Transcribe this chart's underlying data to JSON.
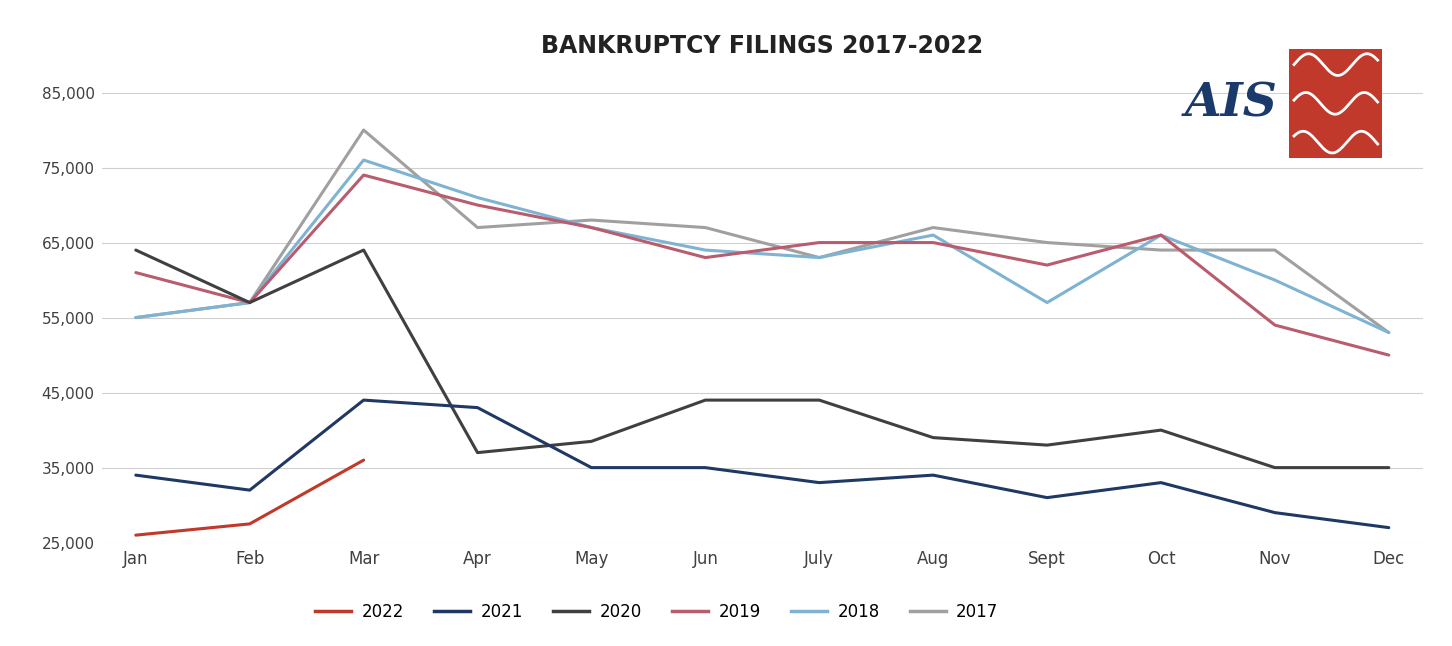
{
  "title": "BANKRUPTCY FILINGS 2017-2022",
  "months": [
    "Jan",
    "Feb",
    "Mar",
    "Apr",
    "May",
    "Jun",
    "July",
    "Aug",
    "Sept",
    "Oct",
    "Nov",
    "Dec"
  ],
  "series": {
    "2022": [
      26000,
      27500,
      36000,
      null,
      null,
      null,
      null,
      null,
      null,
      null,
      null,
      null
    ],
    "2021": [
      34000,
      32000,
      44000,
      43000,
      35000,
      35000,
      33000,
      34000,
      31000,
      33000,
      29000,
      27000
    ],
    "2020": [
      64000,
      57000,
      64000,
      37000,
      38500,
      44000,
      44000,
      39000,
      38000,
      40000,
      35000,
      35000
    ],
    "2019": [
      61000,
      57000,
      74000,
      70000,
      67000,
      63000,
      65000,
      65000,
      62000,
      66000,
      54000,
      50000
    ],
    "2018": [
      55000,
      57000,
      76000,
      71000,
      67000,
      64000,
      63000,
      66000,
      57000,
      66000,
      60000,
      53000
    ],
    "2017": [
      55000,
      57000,
      80000,
      67000,
      68000,
      67000,
      63000,
      67000,
      65000,
      64000,
      64000,
      53000
    ]
  },
  "colors": {
    "2022": "#c0392b",
    "2021": "#1f3864",
    "2020": "#404040",
    "2019": "#b85c6e",
    "2018": "#7fb3d3",
    "2017": "#a0a0a0"
  },
  "ylim": [
    25000,
    87000
  ],
  "yticks": [
    85000,
    75000,
    65000,
    55000,
    45000,
    35000,
    25000
  ],
  "background_color": "#ffffff",
  "line_width": 2.2,
  "logo_text_color": "#1a3a6b",
  "logo_box_color": "#c0392b"
}
